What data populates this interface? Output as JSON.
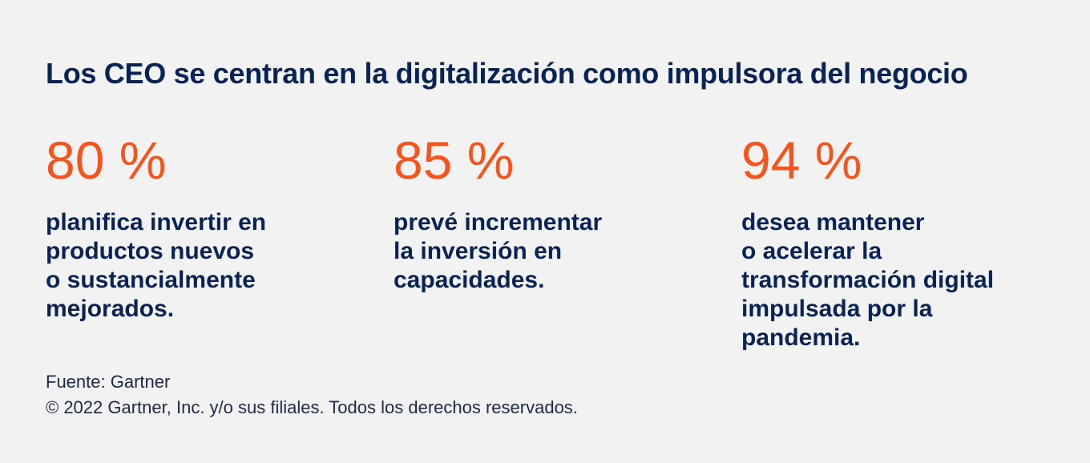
{
  "title": "Los CEO se centran en la digitalización como impulsora del negocio",
  "stats": [
    {
      "value": "80 %",
      "description": "planifica invertir en\nproductos nuevos\no sustancialmente\nmejorados."
    },
    {
      "value": "85 %",
      "description": "prevé incrementar\nla inversión en\ncapacidades."
    },
    {
      "value": "94 %",
      "description": "desea mantener\no acelerar la\ntransformación digital\nimpulsada por la\npandemia."
    }
  ],
  "footer": {
    "source": "Fuente: Gartner",
    "copyright": "© 2022 Gartner, Inc. y/o sus filiales. Todos los derechos reservados."
  },
  "colors": {
    "background": "#f2f2f2",
    "heading": "#0a2354",
    "accent": "#f5541d"
  }
}
